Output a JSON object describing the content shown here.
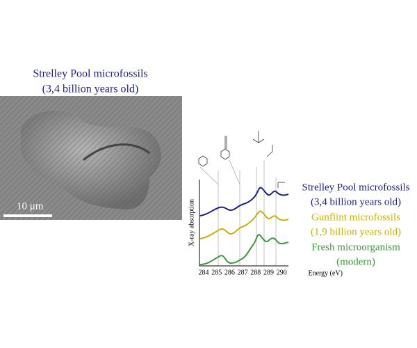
{
  "left_panel": {
    "title_lines": [
      "Strelley Pool microfossils",
      "(3,4 billion years old)"
    ],
    "title_color": "#1c1f8a",
    "scale_bar": "10 μm"
  },
  "spectra": {
    "y_axis_label": "X-ray absorption",
    "x_axis_label": "Energy (eV)",
    "x_ticks": [
      "284",
      "285",
      "286",
      "287",
      "288",
      "289",
      "290"
    ],
    "samples": [
      {
        "name": "Strelley Pool microfossils",
        "age": "(3,4 billion years old)",
        "color": "#1c1f8a"
      },
      {
        "name": "Gunflint microfossils",
        "age": "(1,9 billion years old)",
        "color": "#c9b300"
      },
      {
        "name": "Fresh microorganism",
        "age": "(modern)",
        "color": "#3a9a3a"
      }
    ]
  }
}
